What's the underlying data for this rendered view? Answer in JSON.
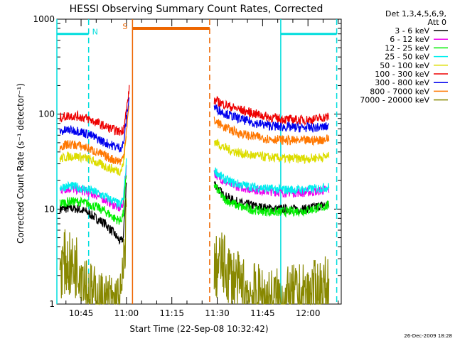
{
  "chart_data": {
    "type": "line",
    "title": "HESSI Observing Summary Count Rates, Corrected",
    "xlabel": "Start Time (22-Sep-08 10:32:42)",
    "ylabel": "Corrected Count Rate (s⁻¹ detector⁻¹)",
    "yscale": "log",
    "ylim": [
      1,
      1000
    ],
    "xlim_minutes": [
      37,
      68
    ],
    "y_ticks": [
      {
        "value": 1,
        "label": "1"
      },
      {
        "value": 10,
        "label": "10"
      },
      {
        "value": 100,
        "label": "100"
      },
      {
        "value": 1000,
        "label": "1000"
      }
    ],
    "x_ticks": [
      {
        "value": 45,
        "label": "10:45"
      },
      {
        "value": 60,
        "label": "11:00"
      },
      {
        "value": 75,
        "label": "11:15"
      },
      {
        "value": 90,
        "label": "11:30"
      },
      {
        "value": 105,
        "label": "11:45"
      },
      {
        "value": 120,
        "label": "12:00"
      }
    ],
    "x_range_minutes": [
      37,
      131
    ],
    "legend_header": [
      "Det 1,3,4,5,6,9,",
      "Att 0"
    ],
    "legend_placement": "right",
    "timestamp": "26-Dec-2009 18:28",
    "series": [
      {
        "name": "3 - 6 keV",
        "color": "#000000",
        "segments": [
          {
            "x": [
              38,
              41,
              44,
              47,
              50,
              53,
              56,
              58,
              59,
              60
            ],
            "y": [
              10,
              10.2,
              10,
              9.3,
              8,
              7,
              5.5,
              4.5,
              5,
              20
            ]
          },
          {
            "x": [
              89,
              92,
              95,
              98,
              101,
              104,
              107,
              110,
              113,
              116,
              119,
              122,
              125,
              127
            ],
            "y": [
              19,
              14,
              12.5,
              11.5,
              11,
              10.5,
              10.2,
              10,
              10,
              10,
              10,
              10.5,
              11,
              11
            ]
          }
        ]
      },
      {
        "name": "6 - 12 keV",
        "color": "#ee00ee",
        "segments": [
          {
            "x": [
              38,
              41,
              44,
              47,
              50,
              53,
              56,
              58,
              59,
              60
            ],
            "y": [
              16,
              16.5,
              16,
              15.2,
              14,
              12.5,
              11,
              10,
              12,
              30
            ]
          },
          {
            "x": [
              89,
              92,
              95,
              98,
              101,
              104,
              107,
              110,
              113,
              116,
              119,
              122,
              125,
              127
            ],
            "y": [
              24,
              20,
              18,
              17,
              16.3,
              15.8,
              15.4,
              15.2,
              15,
              15,
              15,
              15.3,
              15.8,
              16
            ]
          }
        ]
      },
      {
        "name": "12 - 25 keV",
        "color": "#00ee00",
        "segments": [
          {
            "x": [
              38,
              41,
              44,
              47,
              50,
              53,
              56,
              58,
              59,
              60
            ],
            "y": [
              11.5,
              12,
              12,
              11.5,
              10.5,
              9.5,
              8,
              7.5,
              9,
              25
            ]
          },
          {
            "x": [
              89,
              92,
              95,
              98,
              101,
              104,
              107,
              110,
              113,
              116,
              119,
              122,
              125,
              127
            ],
            "y": [
              18,
              13,
              11.5,
              10.5,
              10,
              9.6,
              9.4,
              9.3,
              9.4,
              9.5,
              9.6,
              10,
              10.5,
              11
            ]
          }
        ]
      },
      {
        "name": "25 - 50 keV",
        "color": "#00eeee",
        "segments": [
          {
            "x": [
              38,
              41,
              44,
              47,
              50,
              53,
              56,
              58,
              59,
              60
            ],
            "y": [
              17,
              17.5,
              17,
              16,
              15,
              13.5,
              12,
              11,
              13,
              32
            ]
          },
          {
            "x": [
              89,
              92,
              95,
              98,
              101,
              104,
              107,
              110,
              113,
              116,
              119,
              122,
              125,
              127
            ],
            "y": [
              26,
              21,
              19,
              18,
              17.3,
              16.8,
              16.4,
              16.1,
              16,
              16,
              16,
              16.3,
              16.8,
              17
            ]
          }
        ]
      },
      {
        "name": "50 - 100 keV",
        "color": "#dddd00",
        "segments": [
          {
            "x": [
              38,
              41,
              44,
              47,
              50,
              53,
              56,
              58,
              59,
              60
            ],
            "y": [
              34,
              36,
              36,
              34,
              31,
              28,
              26,
              25,
              30,
              60
            ]
          },
          {
            "x": [
              89,
              92,
              95,
              98,
              101,
              104,
              107,
              110,
              113,
              116,
              119,
              122,
              125,
              127
            ],
            "y": [
              52,
              45,
              41,
              38.5,
              37,
              36,
              35,
              34.5,
              34,
              34,
              34,
              34.5,
              35.5,
              36
            ]
          }
        ]
      },
      {
        "name": "100 - 300 keV",
        "color": "#ee0000",
        "segments": [
          {
            "x": [
              38,
              41,
              44,
              47,
              50,
              53,
              56,
              58,
              59,
              60,
              61
            ],
            "y": [
              92,
              96,
              95,
              90,
              82,
              74,
              68,
              65,
              70,
              110,
              190
            ]
          },
          {
            "x": [
              89,
              92,
              95,
              98,
              101,
              104,
              107,
              110,
              113,
              116,
              119,
              122,
              125,
              127
            ],
            "y": [
              140,
              128,
              118,
              110,
              104,
              98,
              93,
              90,
              88,
              87,
              87,
              88,
              92,
              94
            ]
          }
        ]
      },
      {
        "name": "300 - 800 keV",
        "color": "#0000ee",
        "segments": [
          {
            "x": [
              38,
              41,
              44,
              47,
              50,
              53,
              56,
              58,
              59,
              60,
              61
            ],
            "y": [
              66,
              68,
              67,
              62,
              56,
              50,
              46,
              44,
              48,
              90,
              160
            ]
          },
          {
            "x": [
              89,
              92,
              95,
              98,
              101,
              104,
              107,
              110,
              113,
              116,
              119,
              122,
              125,
              127
            ],
            "y": [
              118,
              104,
              95,
              88,
              83,
              79,
              76,
              74,
              73,
              72,
              72,
              72,
              73,
              74
            ]
          }
        ]
      },
      {
        "name": "800 - 7000 keV",
        "color": "#ff7700",
        "segments": [
          {
            "x": [
              38,
              41,
              44,
              47,
              50,
              53,
              56,
              58,
              59,
              60,
              61
            ],
            "y": [
              46,
              48,
              47,
              44,
              40,
              36,
              33,
              32,
              35,
              70,
              130
            ]
          },
          {
            "x": [
              89,
              92,
              95,
              98,
              101,
              104,
              107,
              110,
              113,
              116,
              119,
              122,
              125,
              127
            ],
            "y": [
              85,
              74,
              67,
              62,
              59,
              57,
              55,
              54,
              53,
              52.5,
              52.5,
              53,
              54,
              55
            ]
          }
        ]
      },
      {
        "name": "7000 - 20000 keV",
        "color": "#888800",
        "segments": [
          {
            "x": [
              38,
              40,
              42,
              44,
              46,
              47,
              48,
              50,
              52,
              54,
              56,
              58,
              59,
              60
            ],
            "y": [
              2.5,
              2.8,
              2.4,
              2.6,
              2.2,
              1.5,
              1.3,
              1.1,
              1.0,
              1.0,
              1.0,
              1.0,
              2,
              10
            ]
          },
          {
            "x": [
              89,
              91,
              93,
              95,
              97,
              99,
              101,
              103,
              105,
              107,
              110,
              113,
              116,
              119,
              122,
              125,
              127
            ],
            "y": [
              2.2,
              2.8,
              2.3,
              1.9,
              1.6,
              1.4,
              1.3,
              1.2,
              1.2,
              1.1,
              1.1,
              1.1,
              1.2,
              1.2,
              1.3,
              1.4,
              1.5
            ]
          }
        ]
      }
    ],
    "annotations": {
      "night_label": "N",
      "saa_label": "S",
      "night_bars": [
        {
          "start": 37,
          "end": 47.5,
          "y": 700,
          "color": "#00dddd"
        },
        {
          "start": 111,
          "end": 129.5,
          "y": 700,
          "color": "#00dddd"
        }
      ],
      "saa_bar": {
        "start": 62,
        "end": 87.5,
        "y": 800,
        "color": "#ee6600"
      },
      "vlines": [
        {
          "x": 37,
          "color": "#00dddd",
          "style": "solid"
        },
        {
          "x": 47.5,
          "color": "#00dddd",
          "style": "dashed"
        },
        {
          "x": 62,
          "color": "#ee6600",
          "style": "solid"
        },
        {
          "x": 87.5,
          "color": "#ee6600",
          "style": "dashed"
        },
        {
          "x": 111,
          "color": "#00dddd",
          "style": "solid"
        },
        {
          "x": 129.5,
          "color": "#00dddd",
          "style": "dashed"
        }
      ]
    }
  }
}
